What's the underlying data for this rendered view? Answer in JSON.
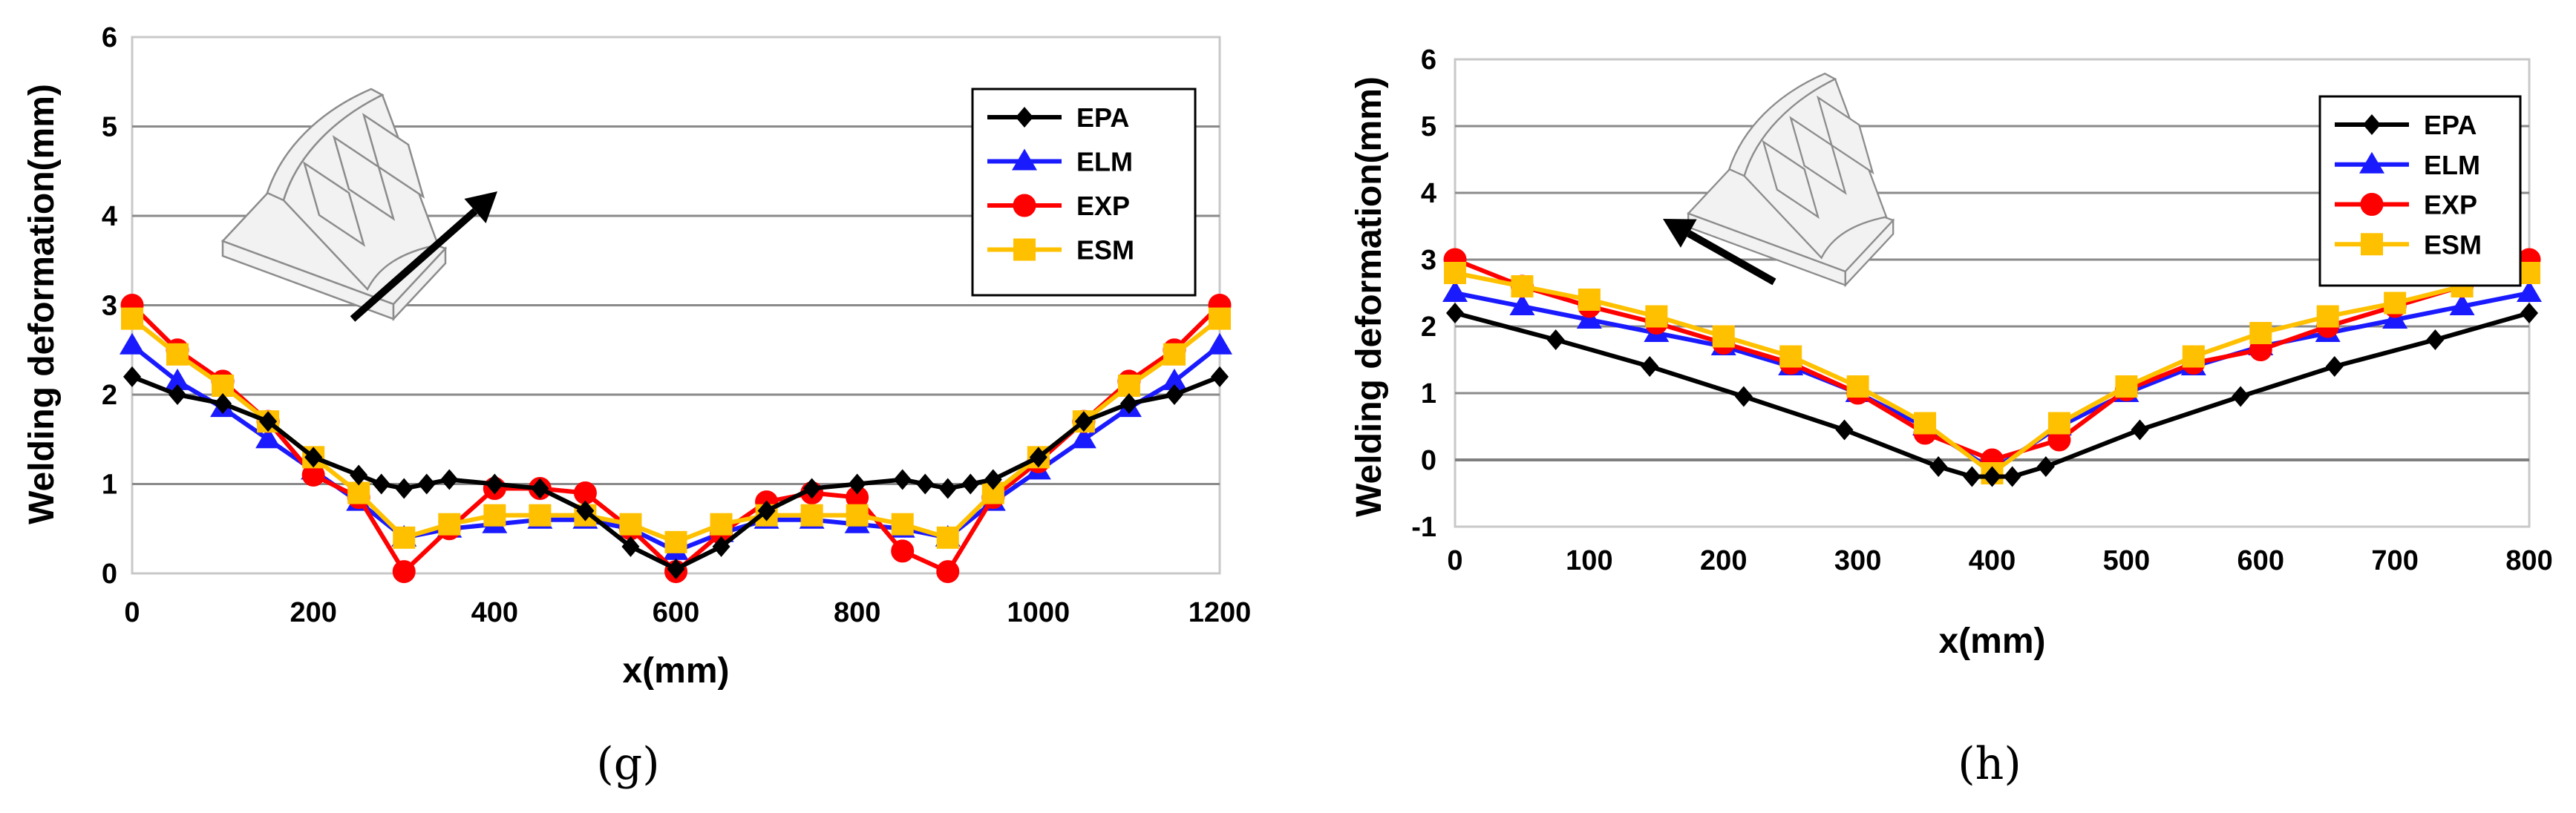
{
  "figure": {
    "captions": [
      "(g)",
      "(h)"
    ]
  },
  "chart_data": [
    {
      "type": "line",
      "panel": "(g)",
      "xlabel": "x(mm)",
      "ylabel": "Welding deformation(mm)",
      "xlim": [
        0,
        1200
      ],
      "ylim": [
        0,
        6
      ],
      "xticks": [
        0,
        200,
        400,
        600,
        800,
        1000,
        1200
      ],
      "yticks": [
        0,
        1,
        2,
        3,
        4,
        5,
        6
      ],
      "grid": true,
      "legend": "top-right",
      "inset_arrow": "up-right",
      "series": [
        {
          "name": "EPA",
          "color": "#000000",
          "marker": "diamond",
          "x": [
            0,
            50,
            100,
            150,
            200,
            250,
            275,
            300,
            325,
            350,
            400,
            450,
            500,
            550,
            600,
            650,
            700,
            750,
            800,
            850,
            875,
            900,
            925,
            950,
            1000,
            1050,
            1100,
            1150,
            1200
          ],
          "y": [
            2.2,
            2.0,
            1.9,
            1.7,
            1.3,
            1.1,
            1.0,
            0.95,
            1.0,
            1.05,
            1.0,
            0.95,
            0.7,
            0.3,
            0.05,
            0.3,
            0.7,
            0.95,
            1.0,
            1.05,
            1.0,
            0.95,
            1.0,
            1.05,
            1.3,
            1.7,
            1.9,
            2.0,
            2.2
          ]
        },
        {
          "name": "ELM",
          "color": "#1a1aff",
          "marker": "triangle",
          "x": [
            0,
            50,
            100,
            150,
            200,
            250,
            300,
            350,
            400,
            450,
            500,
            550,
            600,
            650,
            700,
            750,
            800,
            850,
            900,
            950,
            1000,
            1050,
            1100,
            1150,
            1200
          ],
          "y": [
            2.55,
            2.15,
            1.85,
            1.5,
            1.15,
            0.8,
            0.4,
            0.5,
            0.55,
            0.6,
            0.6,
            0.5,
            0.25,
            0.45,
            0.6,
            0.6,
            0.55,
            0.5,
            0.4,
            0.8,
            1.15,
            1.5,
            1.85,
            2.15,
            2.55
          ]
        },
        {
          "name": "EXP",
          "color": "#ff0000",
          "marker": "circle",
          "x": [
            0,
            50,
            100,
            150,
            200,
            250,
            300,
            350,
            400,
            450,
            500,
            550,
            600,
            650,
            700,
            750,
            800,
            850,
            900,
            950,
            1000,
            1050,
            1100,
            1150,
            1200
          ],
          "y": [
            3.0,
            2.5,
            2.15,
            1.7,
            1.1,
            0.85,
            0.02,
            0.5,
            0.95,
            0.95,
            0.9,
            0.5,
            0.02,
            0.45,
            0.8,
            0.9,
            0.85,
            0.25,
            0.02,
            0.85,
            1.25,
            1.7,
            2.15,
            2.5,
            3.0
          ]
        },
        {
          "name": "ESM",
          "color": "#ffc000",
          "marker": "square",
          "x": [
            0,
            50,
            100,
            150,
            200,
            250,
            300,
            350,
            400,
            450,
            500,
            550,
            600,
            650,
            700,
            750,
            800,
            850,
            900,
            950,
            1000,
            1050,
            1100,
            1150,
            1200
          ],
          "y": [
            2.85,
            2.45,
            2.1,
            1.7,
            1.3,
            0.9,
            0.4,
            0.55,
            0.65,
            0.65,
            0.65,
            0.55,
            0.35,
            0.55,
            0.65,
            0.65,
            0.65,
            0.55,
            0.4,
            0.9,
            1.3,
            1.7,
            2.1,
            2.45,
            2.85
          ]
        }
      ]
    },
    {
      "type": "line",
      "panel": "(h)",
      "xlabel": "x(mm)",
      "ylabel": "Welding deformation(mm)",
      "xlim": [
        0,
        800
      ],
      "ylim": [
        -1,
        6
      ],
      "xticks": [
        0,
        100,
        200,
        300,
        400,
        500,
        600,
        700,
        800
      ],
      "yticks": [
        -1,
        0,
        1,
        2,
        3,
        4,
        5,
        6
      ],
      "grid": true,
      "legend": "top-right",
      "inset_arrow": "up-left",
      "series": [
        {
          "name": "EPA",
          "color": "#000000",
          "marker": "diamond",
          "x": [
            0,
            75,
            145,
            215,
            290,
            360,
            385,
            400,
            415,
            440,
            510,
            585,
            655,
            730,
            800
          ],
          "y": [
            2.2,
            1.8,
            1.4,
            0.95,
            0.45,
            -0.1,
            -0.25,
            -0.25,
            -0.25,
            -0.1,
            0.45,
            0.95,
            1.4,
            1.8,
            2.2
          ]
        },
        {
          "name": "ELM",
          "color": "#1a1aff",
          "marker": "triangle",
          "x": [
            0,
            50,
            100,
            150,
            200,
            250,
            300,
            350,
            400,
            450,
            500,
            550,
            600,
            650,
            700,
            750,
            800
          ],
          "y": [
            2.5,
            2.3,
            2.1,
            1.9,
            1.7,
            1.4,
            1.0,
            0.5,
            -0.15,
            0.5,
            1.0,
            1.4,
            1.7,
            1.9,
            2.1,
            2.3,
            2.5
          ]
        },
        {
          "name": "EXP",
          "color": "#ff0000",
          "marker": "circle",
          "x": [
            0,
            50,
            100,
            150,
            200,
            250,
            300,
            350,
            400,
            450,
            500,
            550,
            600,
            650,
            700,
            750,
            800
          ],
          "y": [
            3.0,
            2.6,
            2.3,
            2.05,
            1.75,
            1.45,
            1.0,
            0.4,
            0.0,
            0.3,
            1.05,
            1.45,
            1.65,
            2.0,
            2.3,
            2.6,
            3.0
          ]
        },
        {
          "name": "ESM",
          "color": "#ffc000",
          "marker": "square",
          "x": [
            0,
            50,
            100,
            150,
            200,
            250,
            300,
            350,
            400,
            450,
            500,
            550,
            600,
            650,
            700,
            750,
            800
          ],
          "y": [
            2.8,
            2.6,
            2.4,
            2.15,
            1.85,
            1.55,
            1.1,
            0.55,
            -0.2,
            0.55,
            1.1,
            1.55,
            1.9,
            2.15,
            2.35,
            2.6,
            2.8
          ]
        }
      ]
    }
  ]
}
